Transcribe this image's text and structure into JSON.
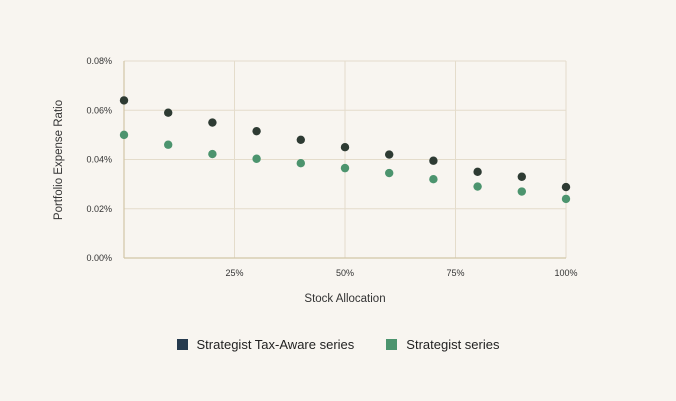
{
  "colors": {
    "background": "#f8f5f0",
    "grid": "#e4dccb",
    "axis": "#d2c6a6",
    "tax_aware_marker": "#2e3b33",
    "tax_aware_swatch": "#253a4e",
    "strategist": "#4c946e"
  },
  "chart_data": {
    "type": "scatter",
    "xlabel": "Stock Allocation",
    "ylabel": "Portfolio Expense Ratio",
    "x": [
      0,
      10,
      20,
      30,
      40,
      50,
      60,
      70,
      80,
      90,
      100
    ],
    "xlim": [
      0,
      100
    ],
    "ylim": [
      0,
      0.08
    ],
    "x_ticks": [
      {
        "value": 25,
        "label": "25%"
      },
      {
        "value": 50,
        "label": "50%"
      },
      {
        "value": 75,
        "label": "75%"
      },
      {
        "value": 100,
        "label": "100%"
      }
    ],
    "y_ticks": [
      {
        "value": 0,
        "label": "0.00%"
      },
      {
        "value": 0.02,
        "label": "0.02%"
      },
      {
        "value": 0.04,
        "label": "0.04%"
      },
      {
        "value": 0.06,
        "label": "0.06%"
      },
      {
        "value": 0.08,
        "label": "0.08%"
      }
    ],
    "grid": true,
    "legend_position": "bottom-center",
    "series": [
      {
        "name": "Strategist Tax-Aware series",
        "values": [
          0.064,
          0.059,
          0.055,
          0.0515,
          0.048,
          0.045,
          0.042,
          0.0395,
          0.035,
          0.033,
          0.0288
        ]
      },
      {
        "name": "Strategist series",
        "values": [
          0.05,
          0.046,
          0.0422,
          0.0403,
          0.0385,
          0.0365,
          0.0345,
          0.032,
          0.029,
          0.027,
          0.024
        ]
      }
    ]
  },
  "legend": {
    "items": [
      {
        "label": "Strategist Tax-Aware series"
      },
      {
        "label": "Strategist series"
      }
    ]
  }
}
